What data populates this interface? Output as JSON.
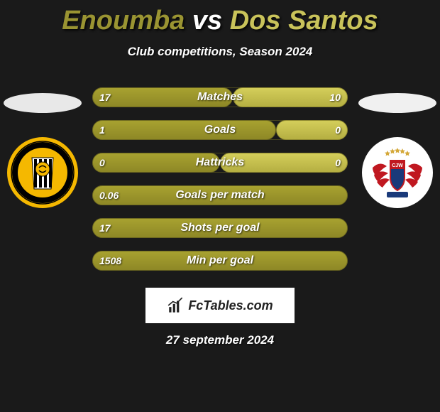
{
  "title": {
    "player1": "Enoumba",
    "vs": "vs",
    "player2": "Dos Santos",
    "player1_color": "#9a9432",
    "vs_color": "#ffffff",
    "player2_color": "#c9c35a"
  },
  "subtitle": "Club competitions, Season 2024",
  "date": "27 september 2024",
  "brand": "FcTables.com",
  "bars": {
    "left_color": "#8e8826",
    "right_color": "#b5af42",
    "outline_color": "#6d6820",
    "label_fontsize": 16,
    "value_fontsize": 14
  },
  "stats": [
    {
      "label": "Matches",
      "left_val": "17",
      "right_val": "10",
      "left_pct": 55,
      "right_pct": 45
    },
    {
      "label": "Goals",
      "left_val": "1",
      "right_val": "0",
      "left_pct": 72,
      "right_pct": 28
    },
    {
      "label": "Hattricks",
      "left_val": "0",
      "right_val": "0",
      "left_pct": 50,
      "right_pct": 50
    },
    {
      "label": "Goals per match",
      "left_val": "0.06",
      "right_val": "",
      "left_pct": 100,
      "right_pct": 0
    },
    {
      "label": "Shots per goal",
      "left_val": "17",
      "right_val": "",
      "left_pct": 100,
      "right_pct": 0
    },
    {
      "label": "Min per goal",
      "left_val": "1508",
      "right_val": "",
      "left_pct": 100,
      "right_pct": 0
    }
  ],
  "team_left": {
    "name": "The Strongest",
    "badge_bg": "#f5b800",
    "stripe_dark": "#000000",
    "stripe_yellow": "#f5b800",
    "ellipse_color": "#e8e8e8"
  },
  "team_right": {
    "name": "Wilstermann",
    "badge_bg": "#ffffff",
    "wing_color": "#c01820",
    "accent_color": "#1a3a7a",
    "stars_color": "#d4a83a",
    "ellipse_color": "#f0f0f0"
  }
}
